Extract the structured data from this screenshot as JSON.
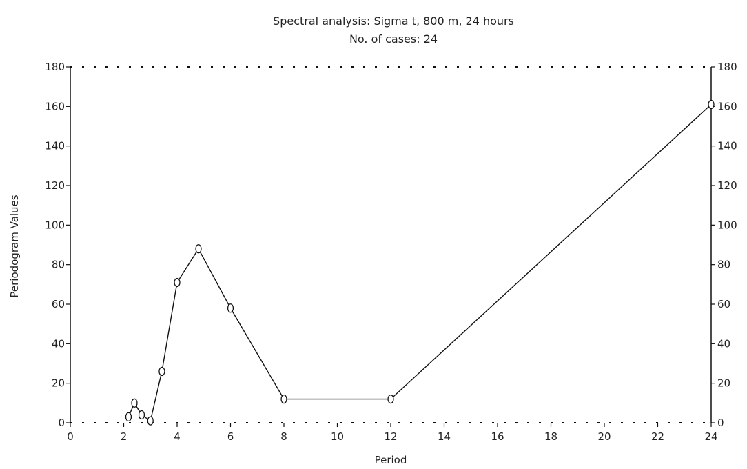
{
  "chart_data": {
    "type": "line",
    "title": "Spectral analysis: Sigma t, 800 m, 24 hours",
    "subtitle": "No. of cases: 24",
    "xlabel": "Period",
    "ylabel": "Periodogram Values",
    "xlim": [
      0,
      24
    ],
    "ylim": [
      0,
      180
    ],
    "x_ticks": [
      0,
      2,
      4,
      6,
      8,
      10,
      12,
      14,
      16,
      18,
      20,
      22,
      24
    ],
    "y_ticks": [
      0,
      20,
      40,
      60,
      80,
      100,
      120,
      140,
      160,
      180
    ],
    "grid": false,
    "legend": "none",
    "series": [
      {
        "x": [
          2.18,
          2.4,
          2.67,
          3.0,
          3.43,
          4.0,
          4.8,
          6.0,
          8.0,
          12.0,
          24.0
        ],
        "y": [
          3,
          10,
          4,
          1,
          26,
          71,
          88,
          58,
          12,
          12,
          161
        ]
      }
    ]
  }
}
